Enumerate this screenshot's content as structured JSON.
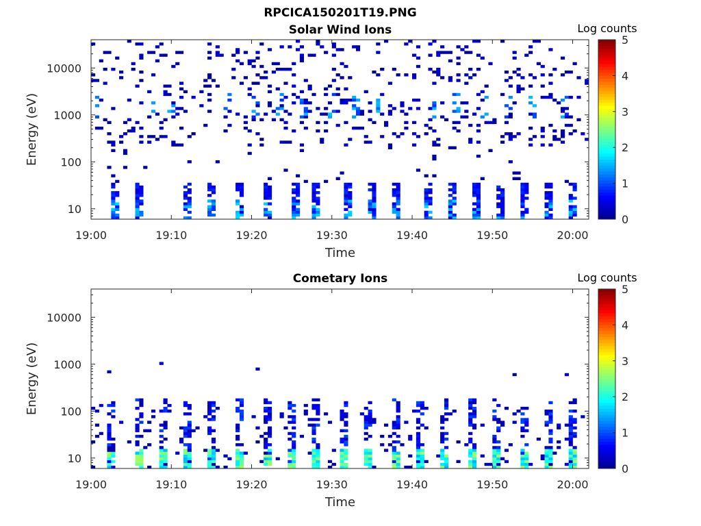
{
  "figure_title": "RPCICA150201T19.PNG",
  "colormap": [
    "#00008f",
    "#0000ff",
    "#0080ff",
    "#00ffff",
    "#80ff80",
    "#ffff00",
    "#ff8000",
    "#ff0000",
    "#800000"
  ],
  "chart_data": [
    {
      "type": "heatmap",
      "title": "Solar Wind Ions",
      "xlabel": "Time",
      "ylabel": "Energy (eV)",
      "yscale": "log",
      "ylim": [
        6,
        40000
      ],
      "xlim": [
        "19:00",
        "20:02"
      ],
      "xticks": [
        "19:00",
        "19:10",
        "19:20",
        "19:30",
        "19:40",
        "19:50",
        "20:00"
      ],
      "yticks": [
        "10",
        "100",
        "1000",
        "10000"
      ],
      "colorbar": {
        "label": "Log counts",
        "range": [
          0,
          5
        ],
        "ticks": [
          "0",
          "1",
          "2",
          "3",
          "4",
          "5"
        ]
      },
      "low_energy_burst_times_min": [
        3,
        6,
        12,
        15,
        18.5,
        22,
        25.5,
        28,
        32,
        35,
        38,
        42,
        45,
        48,
        51,
        54,
        57,
        60
      ],
      "high_energy_streak_times_min": [
        1,
        7.5,
        10,
        17,
        20.5,
        23.5,
        26.5,
        30,
        33,
        36,
        42.5,
        45.5,
        49,
        52,
        55,
        59
      ],
      "summary": {
        "background_counts_log": [
          0,
          0.5
        ],
        "burst_counts_log": [
          0.3,
          1.7
        ]
      }
    },
    {
      "type": "heatmap",
      "title": "Cometary Ions",
      "xlabel": "Time",
      "ylabel": "Energy (eV)",
      "yscale": "log",
      "ylim": [
        6,
        40000
      ],
      "xlim": [
        "19:00",
        "20:02"
      ],
      "xticks": [
        "19:00",
        "19:10",
        "19:20",
        "19:30",
        "19:40",
        "19:50",
        "20:00"
      ],
      "yticks": [
        "10",
        "100",
        "1000",
        "10000"
      ],
      "colorbar": {
        "label": "Log counts",
        "range": [
          0,
          5
        ],
        "ticks": [
          "0",
          "1",
          "2",
          "3",
          "4",
          "5"
        ]
      },
      "low_energy_burst_times_min": [
        2.5,
        6,
        9,
        12,
        15,
        18.5,
        22,
        25,
        28,
        31.5,
        34.5,
        38,
        41,
        44,
        47.5,
        50.5,
        54,
        57,
        60
      ],
      "summary": {
        "background_counts_log": [
          0,
          0.5
        ],
        "burst_counts_log": [
          1.5,
          2.7
        ]
      }
    }
  ]
}
